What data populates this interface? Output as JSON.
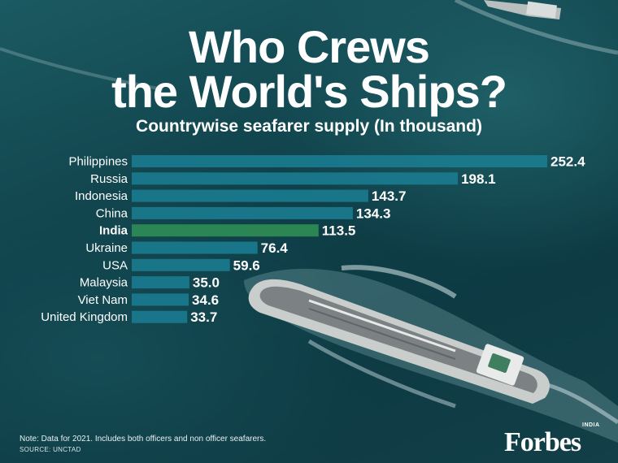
{
  "header": {
    "title_line1": "Who Crews",
    "title_line2": "the World's Ships?",
    "subtitle": "Countrywise seafarer supply (In thousand)"
  },
  "footer": {
    "note": "Note: Data for 2021. Includes both officers and non officer seafarers.",
    "source": "SOURCE: UNCTAD"
  },
  "brand": {
    "logo": "Forbes",
    "edition": "INDIA"
  },
  "colors": {
    "bar": "#1b7f94",
    "highlight_bar": "#2d8a55"
  },
  "chart_data": {
    "type": "bar",
    "orientation": "horizontal",
    "title": "Who Crews the World's Ships?",
    "subtitle": "Countrywise seafarer supply (In thousand)",
    "categories": [
      "Philippines",
      "Russia",
      "Indonesia",
      "China",
      "India",
      "Ukraine",
      "USA",
      "Malaysia",
      "Viet Nam",
      "United Kingdom"
    ],
    "values": [
      252.4,
      198.1,
      143.7,
      134.3,
      113.5,
      76.4,
      59.6,
      35.0,
      34.6,
      33.7
    ],
    "value_labels": [
      "252.4",
      "198.1",
      "143.7",
      "134.3",
      "113.5",
      "76.4",
      "59.6",
      "35.0",
      "34.6",
      "33.7"
    ],
    "highlight": "India",
    "xlim": [
      0,
      252.4
    ],
    "grid": false,
    "legend": "none"
  }
}
